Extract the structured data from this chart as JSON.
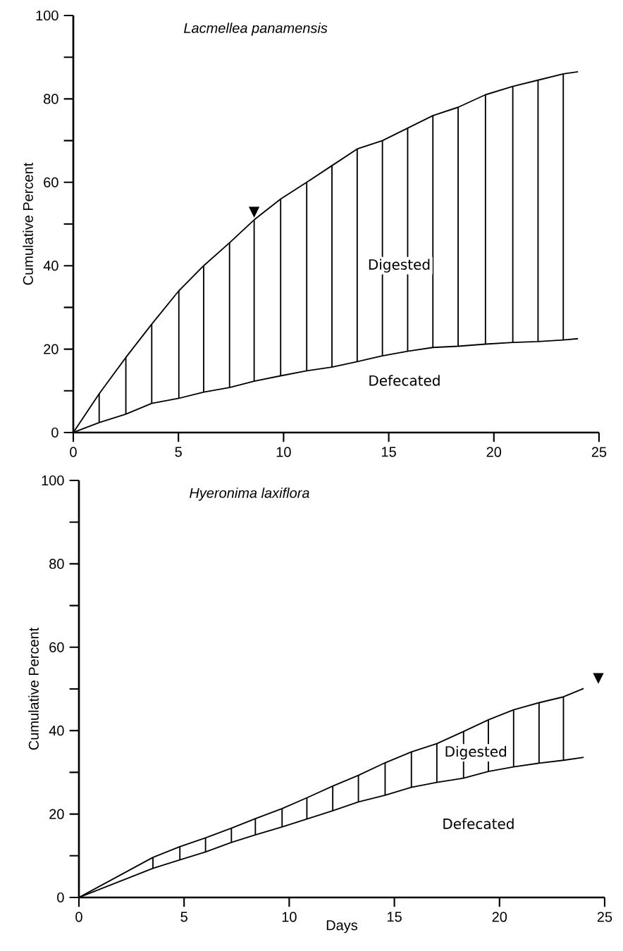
{
  "chart_data": [
    {
      "type": "line",
      "title": "Lacmellea panamensis",
      "ylabel": "Cumulative Percent",
      "x": [
        0,
        1.23,
        2.5,
        3.73,
        5.02,
        6.2,
        7.43,
        8.6,
        9.86,
        11.1,
        12.3,
        13.5,
        14.7,
        15.9,
        17.1,
        18.3,
        19.6,
        20.9,
        22.1,
        23.3,
        24
      ],
      "series": [
        {
          "color": "#000000",
          "values": [
            0,
            9.3,
            18,
            26,
            34,
            40,
            45.5,
            51,
            56,
            60,
            64,
            68,
            70,
            73,
            76,
            78,
            81,
            83,
            84.5,
            86,
            86.5
          ]
        },
        {
          "color": "#000000",
          "values": [
            0,
            2.4,
            4.4,
            7,
            8.2,
            9.7,
            10.8,
            12.3,
            13.6,
            14.8,
            15.7,
            17,
            18.4,
            19.5,
            20.4,
            20.7,
            21.2,
            21.6,
            21.8,
            22.2,
            22.5
          ]
        },
        {
          "type": "line",
          "color": "#000000",
          "x": [
            1.23,
            1.23
          ],
          "values": [
            2.4,
            9.3
          ]
        },
        {
          "type": "line",
          "color": "#000000",
          "x": [
            2.5,
            2.5
          ],
          "values": [
            4.4,
            18
          ]
        },
        {
          "type": "line",
          "color": "#000000",
          "x": [
            3.73,
            3.73
          ],
          "values": [
            7,
            26
          ]
        },
        {
          "type": "line",
          "color": "#000000",
          "x": [
            5.02,
            5.02
          ],
          "values": [
            8.2,
            34
          ]
        },
        {
          "type": "line",
          "color": "#000000",
          "x": [
            6.2,
            6.2
          ],
          "values": [
            9.7,
            40
          ]
        },
        {
          "type": "line",
          "color": "#000000",
          "x": [
            7.43,
            7.43
          ],
          "values": [
            10.8,
            45.5
          ]
        },
        {
          "type": "line",
          "color": "#000000",
          "x": [
            8.6,
            8.6
          ],
          "values": [
            12.3,
            51
          ]
        },
        {
          "type": "line",
          "color": "#000000",
          "x": [
            9.86,
            9.86
          ],
          "values": [
            13.6,
            56
          ]
        },
        {
          "type": "line",
          "color": "#000000",
          "x": [
            11.1,
            11.1
          ],
          "values": [
            14.8,
            60
          ]
        },
        {
          "type": "line",
          "color": "#000000",
          "x": [
            12.3,
            12.3
          ],
          "values": [
            15.7,
            64
          ]
        },
        {
          "type": "line",
          "color": "#000000",
          "x": [
            13.5,
            13.5
          ],
          "values": [
            17,
            68
          ]
        },
        {
          "type": "line",
          "color": "#000000",
          "x": [
            14.7,
            14.7
          ],
          "values": [
            18.4,
            70
          ]
        },
        {
          "type": "line",
          "color": "#000000",
          "x": [
            15.9,
            15.9
          ],
          "values": [
            19.5,
            73
          ]
        },
        {
          "type": "line",
          "color": "#000000",
          "x": [
            17.1,
            17.1
          ],
          "values": [
            20.4,
            76
          ]
        },
        {
          "type": "line",
          "color": "#000000",
          "x": [
            18.3,
            18.3
          ],
          "values": [
            20.7,
            78
          ]
        },
        {
          "type": "line",
          "color": "#000000",
          "x": [
            19.6,
            19.6
          ],
          "values": [
            21.2,
            81
          ]
        },
        {
          "type": "line",
          "color": "#000000",
          "x": [
            20.9,
            20.9
          ],
          "values": [
            21.6,
            83
          ]
        },
        {
          "type": "line",
          "color": "#000000",
          "x": [
            22.1,
            22.1
          ],
          "values": [
            21.8,
            84.5
          ]
        },
        {
          "type": "line",
          "color": "#000000",
          "x": [
            23.3,
            23.3
          ],
          "values": [
            22.2,
            86
          ]
        }
      ],
      "annotations": [
        {
          "text": "▼",
          "x": 8.6,
          "y": 51
        },
        "Digested",
        "Defecated"
      ],
      "xlim": [
        0,
        25
      ],
      "xticks": [
        0,
        5,
        10,
        15,
        20,
        25
      ],
      "ylim": [
        0,
        100
      ],
      "yticks": [
        0,
        {
          "value": 10,
          "label": null
        },
        20,
        {
          "value": 30,
          "label": null
        },
        40,
        {
          "value": 50,
          "label": null
        },
        60,
        {
          "value": 70,
          "label": null
        },
        80,
        {
          "value": 90,
          "label": null
        },
        100
      ],
      "grid": false,
      "marker": "none",
      "line_style": "solid"
    },
    {
      "type": "line",
      "title": "Hyeronima laxiflora",
      "xlabel": "Days",
      "ylabel": "Cumulative Percent",
      "x": [
        0,
        3.52,
        4.8,
        6.02,
        7.25,
        8.39,
        9.66,
        10.84,
        12.07,
        13.29,
        14.56,
        15.81,
        17.02,
        18.29,
        19.47,
        20.67,
        21.88,
        23.04,
        24
      ],
      "series": [
        {
          "color": "#000000",
          "values": [
            0,
            9.6,
            12.2,
            14.3,
            16.6,
            18.9,
            21.3,
            23.9,
            26.7,
            29.3,
            32.3,
            34.9,
            36.9,
            39.8,
            42.6,
            45,
            46.7,
            48.1,
            50.1
          ]
        },
        {
          "color": "#000000",
          "values": [
            0,
            7,
            9,
            10.9,
            13.2,
            15,
            16.9,
            18.8,
            20.8,
            22.9,
            24.5,
            26.4,
            27.6,
            28.6,
            30.2,
            31.3,
            32.2,
            32.9,
            33.6
          ]
        },
        {
          "type": "line",
          "color": "#000000",
          "x": [
            3.52,
            3.52
          ],
          "values": [
            7,
            9.6
          ]
        },
        {
          "type": "line",
          "color": "#000000",
          "x": [
            4.8,
            4.8
          ],
          "values": [
            9,
            12.2
          ]
        },
        {
          "type": "line",
          "color": "#000000",
          "x": [
            6.02,
            6.02
          ],
          "values": [
            10.9,
            14.3
          ]
        },
        {
          "type": "line",
          "color": "#000000",
          "x": [
            7.25,
            7.25
          ],
          "values": [
            13.2,
            16.6
          ]
        },
        {
          "type": "line",
          "color": "#000000",
          "x": [
            8.39,
            8.39
          ],
          "values": [
            15,
            18.9
          ]
        },
        {
          "type": "line",
          "color": "#000000",
          "x": [
            9.66,
            9.66
          ],
          "values": [
            16.9,
            21.3
          ]
        },
        {
          "type": "line",
          "color": "#000000",
          "x": [
            10.84,
            10.84
          ],
          "values": [
            18.8,
            23.9
          ]
        },
        {
          "type": "line",
          "color": "#000000",
          "x": [
            12.07,
            12.07
          ],
          "values": [
            20.8,
            26.7
          ]
        },
        {
          "type": "line",
          "color": "#000000",
          "x": [
            13.29,
            13.29
          ],
          "values": [
            22.9,
            29.3
          ]
        },
        {
          "type": "line",
          "color": "#000000",
          "x": [
            14.56,
            14.56
          ],
          "values": [
            24.5,
            32.3
          ]
        },
        {
          "type": "line",
          "color": "#000000",
          "x": [
            15.81,
            15.81
          ],
          "values": [
            26.4,
            34.9
          ]
        },
        {
          "type": "line",
          "color": "#000000",
          "x": [
            17.02,
            17.02
          ],
          "values": [
            27.6,
            36.9
          ]
        },
        {
          "type": "line",
          "color": "#000000",
          "x": [
            18.29,
            18.29
          ],
          "values": [
            28.6,
            39.8
          ]
        },
        {
          "type": "line",
          "color": "#000000",
          "x": [
            19.47,
            19.47
          ],
          "values": [
            30.2,
            42.6
          ]
        },
        {
          "type": "line",
          "color": "#000000",
          "x": [
            20.67,
            20.67
          ],
          "values": [
            31.3,
            45
          ]
        },
        {
          "type": "line",
          "color": "#000000",
          "x": [
            21.88,
            21.88
          ],
          "values": [
            32.2,
            46.7
          ]
        },
        {
          "type": "line",
          "color": "#000000",
          "x": [
            23.04,
            23.04
          ],
          "values": [
            32.9,
            48.1
          ]
        }
      ],
      "annotations": [
        "▼",
        "Digested",
        "Defecated"
      ],
      "xlim": [
        0,
        25
      ],
      "xticks": [
        0,
        5,
        10,
        15,
        20,
        25
      ],
      "ylim": [
        0,
        100
      ],
      "yticks": [
        0,
        {
          "value": 10,
          "label": null
        },
        20,
        {
          "value": 30,
          "label": null
        },
        40,
        {
          "value": 50,
          "label": null
        },
        60,
        {
          "value": 70,
          "label": null
        },
        80,
        {
          "value": 90,
          "label": null
        },
        100
      ],
      "grid": false,
      "marker": "none",
      "line_style": "solid"
    }
  ]
}
